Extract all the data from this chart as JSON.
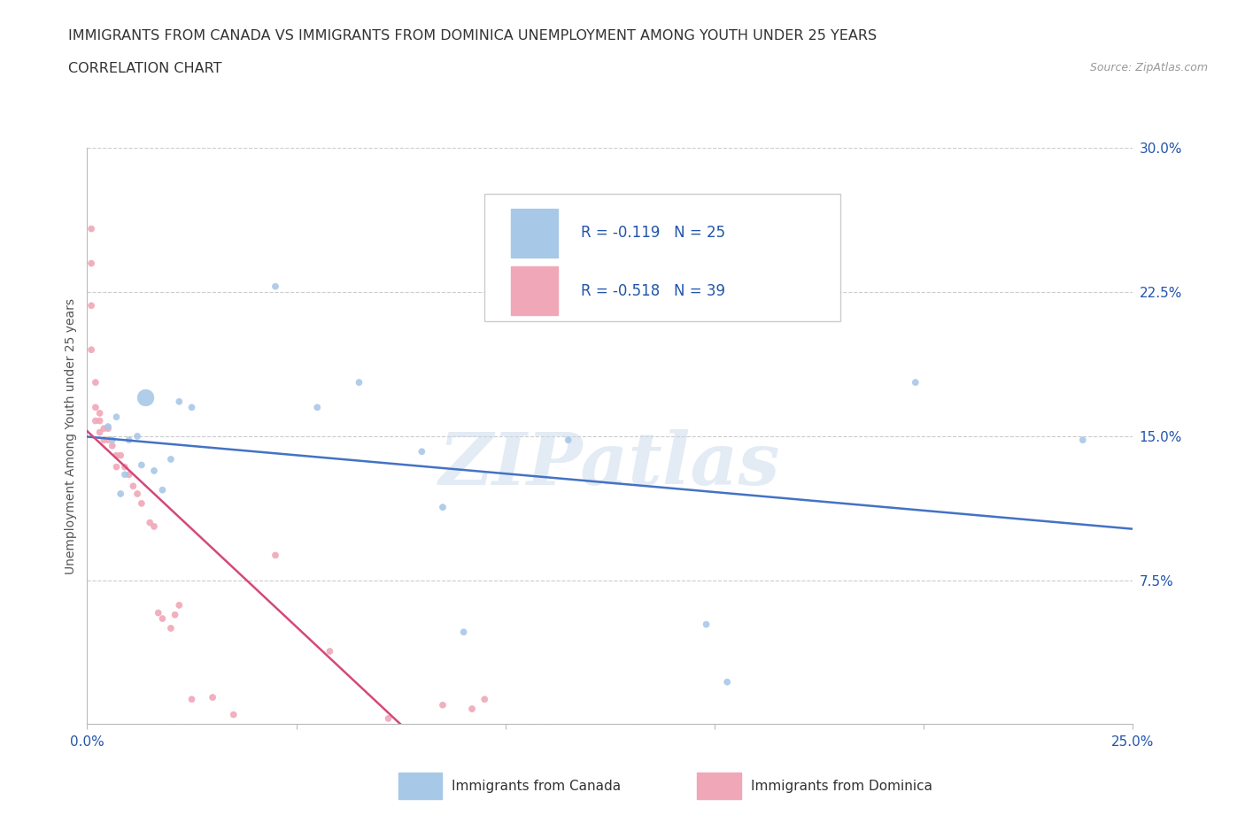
{
  "title_line1": "IMMIGRANTS FROM CANADA VS IMMIGRANTS FROM DOMINICA UNEMPLOYMENT AMONG YOUTH UNDER 25 YEARS",
  "title_line2": "CORRELATION CHART",
  "source_text": "Source: ZipAtlas.com",
  "ylabel": "Unemployment Among Youth under 25 years",
  "xlim": [
    0.0,
    0.25
  ],
  "ylim": [
    0.0,
    0.3
  ],
  "xticks": [
    0.0,
    0.05,
    0.1,
    0.15,
    0.2,
    0.25
  ],
  "yticks": [
    0.0,
    0.075,
    0.15,
    0.225,
    0.3
  ],
  "xticklabels": [
    "0.0%",
    "",
    "",
    "",
    "",
    "25.0%"
  ],
  "yticklabels": [
    "",
    "7.5%",
    "15.0%",
    "22.5%",
    "30.0%"
  ],
  "canada_R": -0.119,
  "canada_N": 25,
  "dominica_R": -0.518,
  "dominica_N": 39,
  "canada_color": "#A8C8E8",
  "dominica_color": "#F0A8B8",
  "canada_line_color": "#4472C4",
  "dominica_line_color": "#D4487A",
  "watermark_text": "ZIPatlas",
  "legend_label_canada": "Immigrants from Canada",
  "legend_label_dominica": "Immigrants from Dominica",
  "canada_x": [
    0.005,
    0.006,
    0.007,
    0.008,
    0.009,
    0.01,
    0.012,
    0.013,
    0.014,
    0.016,
    0.018,
    0.02,
    0.022,
    0.025,
    0.045,
    0.055,
    0.065,
    0.08,
    0.085,
    0.09,
    0.115,
    0.148,
    0.153,
    0.198,
    0.238
  ],
  "canada_y": [
    0.155,
    0.148,
    0.16,
    0.12,
    0.13,
    0.148,
    0.15,
    0.135,
    0.17,
    0.132,
    0.122,
    0.138,
    0.168,
    0.165,
    0.228,
    0.165,
    0.178,
    0.142,
    0.113,
    0.048,
    0.148,
    0.052,
    0.022,
    0.178,
    0.148
  ],
  "canada_sizes": [
    25,
    25,
    25,
    25,
    25,
    25,
    25,
    25,
    180,
    25,
    25,
    25,
    25,
    25,
    25,
    25,
    25,
    25,
    25,
    25,
    25,
    25,
    25,
    25,
    25
  ],
  "dominica_x": [
    0.001,
    0.001,
    0.001,
    0.001,
    0.002,
    0.002,
    0.002,
    0.003,
    0.003,
    0.003,
    0.004,
    0.004,
    0.005,
    0.005,
    0.006,
    0.007,
    0.007,
    0.008,
    0.009,
    0.01,
    0.011,
    0.012,
    0.013,
    0.015,
    0.016,
    0.017,
    0.018,
    0.02,
    0.021,
    0.022,
    0.025,
    0.03,
    0.035,
    0.045,
    0.058,
    0.072,
    0.085,
    0.092,
    0.095
  ],
  "dominica_y": [
    0.258,
    0.24,
    0.218,
    0.195,
    0.178,
    0.165,
    0.158,
    0.162,
    0.158,
    0.152,
    0.154,
    0.148,
    0.154,
    0.148,
    0.145,
    0.14,
    0.134,
    0.14,
    0.134,
    0.13,
    0.124,
    0.12,
    0.115,
    0.105,
    0.103,
    0.058,
    0.055,
    0.05,
    0.057,
    0.062,
    0.013,
    0.014,
    0.005,
    0.088,
    0.038,
    0.003,
    0.01,
    0.008,
    0.013
  ],
  "dominica_sizes": [
    25,
    25,
    25,
    25,
    25,
    25,
    25,
    25,
    25,
    25,
    25,
    25,
    25,
    25,
    25,
    25,
    25,
    25,
    25,
    25,
    25,
    25,
    25,
    25,
    25,
    25,
    25,
    25,
    25,
    25,
    25,
    25,
    25,
    25,
    25,
    25,
    25,
    25,
    25
  ],
  "background_color": "#FFFFFF",
  "grid_color": "#CCCCCC",
  "legend_text_color": "#2255AA"
}
